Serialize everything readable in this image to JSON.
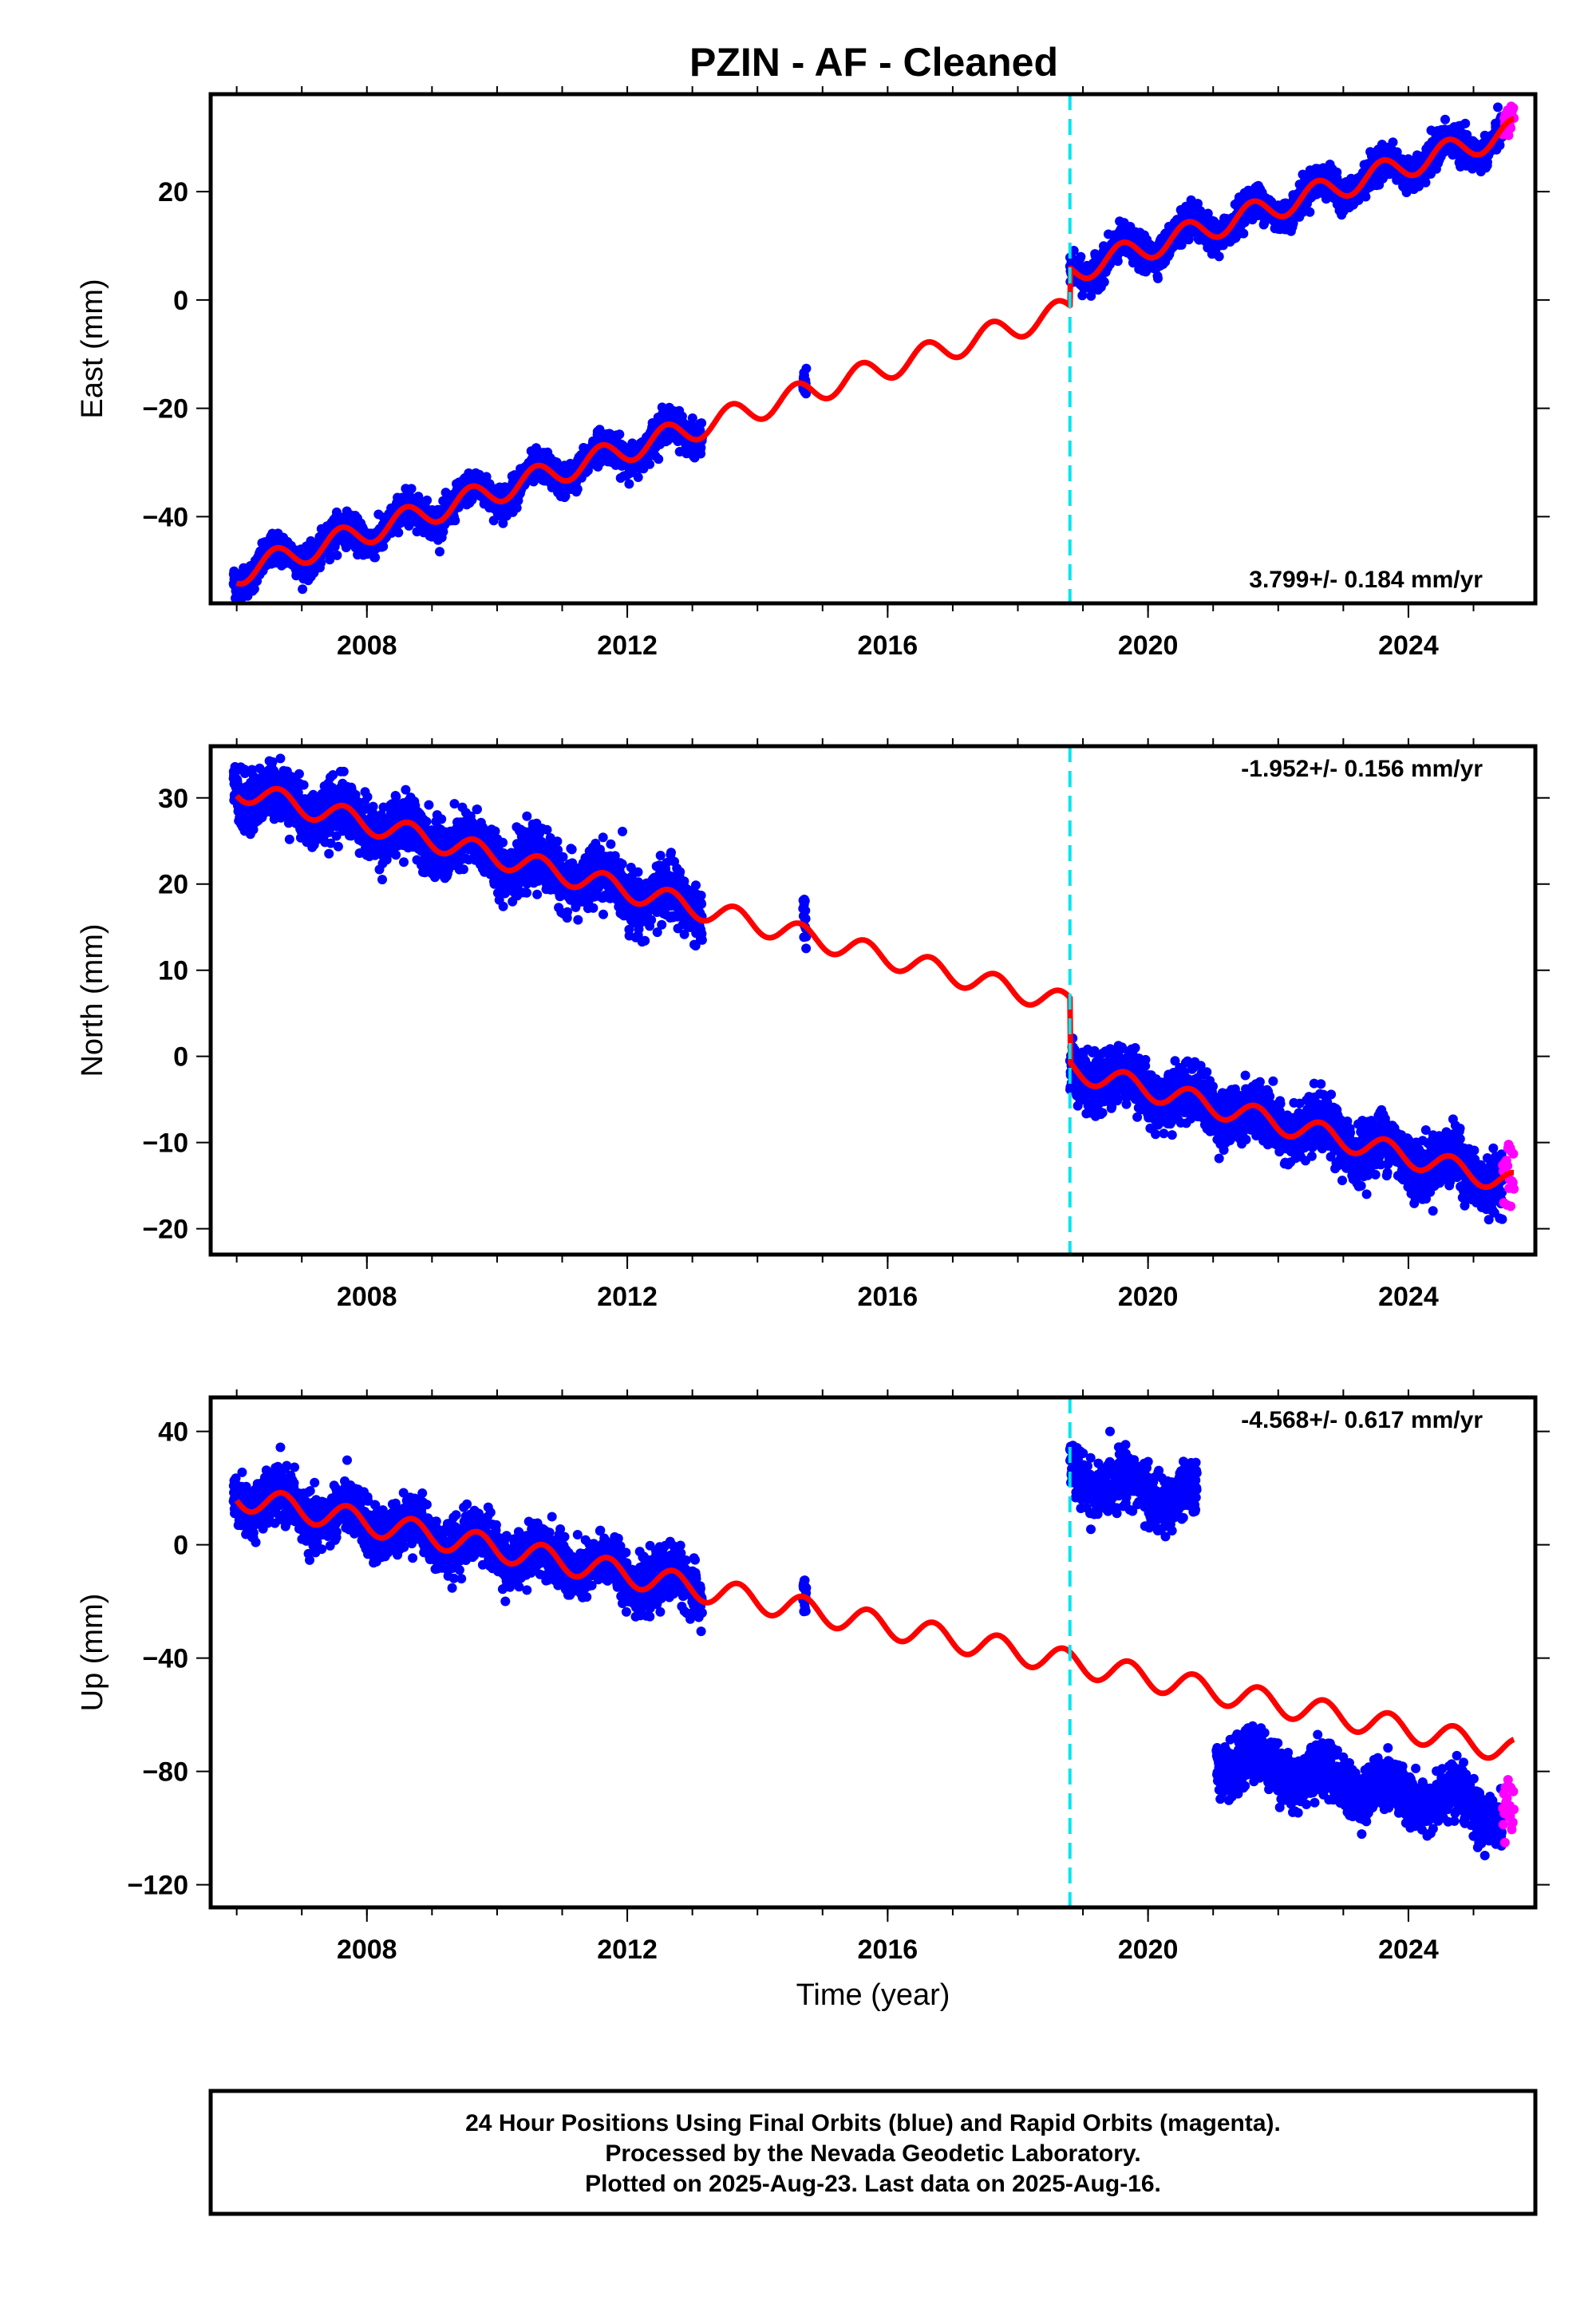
{
  "title": "PZIN  - AF - Cleaned",
  "footer": {
    "lines": [
      "24 Hour Positions Using Final Orbits (blue) and Rapid Orbits (magenta).",
      "Processed by the Nevada Geodetic Laboratory.",
      "Plotted on 2025-Aug-23. Last data on 2025-Aug-16."
    ]
  },
  "colors": {
    "final_orbits": "#0000ff",
    "rapid_orbits": "#ff00ff",
    "model_fit": "#ff0000",
    "event_line": "#00e5ee",
    "frame": "#000000"
  },
  "chart_data": [
    {
      "type": "scatter",
      "name": "east",
      "ylabel": "East (mm)",
      "xlabel": "",
      "xlim": [
        2005.6,
        2025.95
      ],
      "ylim": [
        -56,
        38
      ],
      "xticks": [
        2008,
        2012,
        2016,
        2020,
        2024
      ],
      "xtick_labels": [
        "2008",
        "2012",
        "2016",
        "2020",
        "2024"
      ],
      "yticks": [
        -40,
        -20,
        0,
        20
      ],
      "ytick_labels": [
        "−40",
        "−20",
        "0",
        "20"
      ],
      "rate_text": "3.799+/- 0.184 mm/yr",
      "rate_position": "bottom-right",
      "event_x": 2018.8,
      "data_segments": [
        [
          2005.95,
          2013.15
        ],
        [
          2014.7,
          2014.75
        ],
        [
          2018.8,
          2025.45
        ]
      ],
      "rapid_segment": [
        2025.45,
        2025.62
      ],
      "fit": {
        "rate": 3.8,
        "intercept": -50.4,
        "amplitude": 2.3,
        "phase": 0.35,
        "offsets": [
          {
            "t": 2018.8,
            "dy": 7.0
          }
        ],
        "scatter_sd": 1.4
      }
    },
    {
      "type": "scatter",
      "name": "north",
      "ylabel": "North (mm)",
      "xlabel": "",
      "xlim": [
        2005.6,
        2025.95
      ],
      "ylim": [
        -23,
        36
      ],
      "xticks": [
        2008,
        2012,
        2016,
        2020,
        2024
      ],
      "xtick_labels": [
        "2008",
        "2012",
        "2016",
        "2020",
        "2024"
      ],
      "yticks": [
        -20,
        -10,
        0,
        10,
        20,
        30
      ],
      "ytick_labels": [
        "−20",
        "−10",
        "0",
        "10",
        "20",
        "30"
      ],
      "rate_text": "-1.952+/- 0.156 mm/yr",
      "rate_position": "top-right",
      "event_x": 2018.8,
      "data_segments": [
        [
          2005.95,
          2013.15
        ],
        [
          2014.7,
          2014.75
        ],
        [
          2018.8,
          2025.45
        ]
      ],
      "rapid_segment": [
        2025.45,
        2025.62
      ],
      "fit": {
        "rate": -1.95,
        "intercept": 31.0,
        "amplitude": 1.3,
        "phase": 0.4,
        "offsets": [
          {
            "t": 2018.8,
            "dy": -7.5
          }
        ],
        "scatter_sd": 1.6
      }
    },
    {
      "type": "scatter",
      "name": "up",
      "ylabel": "Up (mm)",
      "xlabel": "Time (year)",
      "xlim": [
        2005.6,
        2025.95
      ],
      "ylim": [
        -128,
        52
      ],
      "xticks": [
        2008,
        2012,
        2016,
        2020,
        2024
      ],
      "xtick_labels": [
        "2008",
        "2012",
        "2016",
        "2020",
        "2024"
      ],
      "yticks": [
        -120,
        -80,
        -40,
        0,
        40
      ],
      "ytick_labels": [
        "−120",
        "−80",
        "−40",
        "0",
        "40"
      ],
      "rate_text": "-4.568+/- 0.617 mm/yr",
      "rate_position": "top-right",
      "event_x": 2018.8,
      "data_segments": [
        [
          2005.95,
          2013.15
        ],
        [
          2014.7,
          2014.75
        ],
        [
          2018.8,
          2020.75
        ],
        [
          2021.05,
          2025.45
        ]
      ],
      "rapid_segment": [
        2025.45,
        2025.62
      ],
      "fit": {
        "rate": -4.57,
        "intercept": 17.0,
        "amplitude": 4.5,
        "phase": 0.45,
        "offsets": [],
        "scatter_sd": 4.5,
        "data_shifts": [
          {
            "from": 2018.8,
            "to": 2020.75,
            "dy": 66
          },
          {
            "from": 2021.05,
            "to": 2025.62,
            "dy": -23
          }
        ]
      }
    }
  ]
}
